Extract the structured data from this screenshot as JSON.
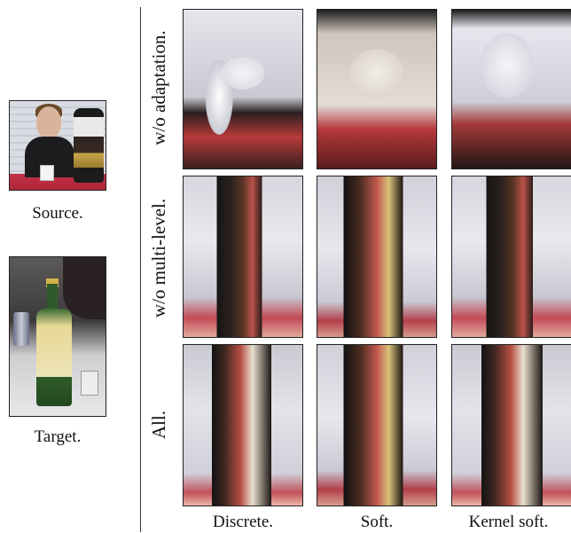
{
  "left_column": {
    "source_caption": "Source.",
    "target_caption": "Target."
  },
  "row_labels": [
    "w/o adaptation.",
    "w/o multi-level.",
    "All."
  ],
  "column_labels": [
    "Discrete.",
    "Soft.",
    "Kernel soft."
  ]
}
